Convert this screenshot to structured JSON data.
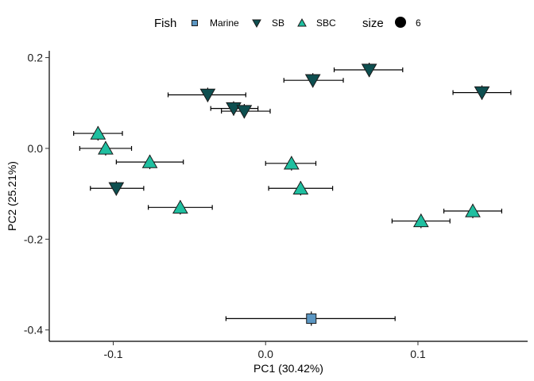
{
  "chart_data": {
    "type": "scatter",
    "title": "",
    "xlabel": "PC1 (30.42%)",
    "ylabel": "PC2 (25.21%)",
    "xlim": [
      -0.142,
      0.172
    ],
    "ylim": [
      -0.425,
      0.215
    ],
    "x_ticks": [
      -0.1,
      0.0,
      0.1
    ],
    "x_tick_labels": [
      "-0.1",
      "0.0",
      "0.1"
    ],
    "y_ticks": [
      0.2,
      0.0,
      -0.2,
      -0.4
    ],
    "y_tick_labels": [
      "0.2",
      "0.0",
      "-0.2",
      "-0.4"
    ],
    "grid": false,
    "legend": {
      "placement": "top",
      "title": "Fish",
      "size_title": "size",
      "size_value": "6",
      "entries": [
        {
          "label": "Marine",
          "shape": "square",
          "color": "#5b96c2"
        },
        {
          "label": "SB",
          "shape": "triangle-down",
          "color": "#0d4f50"
        },
        {
          "label": "SBC",
          "shape": "triangle-up",
          "color": "#1fbfa0"
        }
      ]
    },
    "series": [
      {
        "name": "Marine",
        "shape": "square",
        "color": "#5b96c2",
        "points": [
          {
            "x": 0.03,
            "y": -0.375,
            "xmin": -0.026,
            "xmax": 0.085
          }
        ]
      },
      {
        "name": "SB",
        "shape": "triangle-down",
        "color": "#0d4f50",
        "points": [
          {
            "x": 0.068,
            "y": 0.173,
            "xmin": 0.045,
            "xmax": 0.09
          },
          {
            "x": 0.031,
            "y": 0.15,
            "xmin": 0.012,
            "xmax": 0.051
          },
          {
            "x": 0.142,
            "y": 0.123,
            "xmin": 0.123,
            "xmax": 0.161
          },
          {
            "x": -0.038,
            "y": 0.118,
            "xmin": -0.064,
            "xmax": -0.013
          },
          {
            "x": -0.021,
            "y": 0.088,
            "xmin": -0.036,
            "xmax": -0.005
          },
          {
            "x": -0.014,
            "y": 0.082,
            "xmin": -0.029,
            "xmax": 0.003
          },
          {
            "x": -0.098,
            "y": -0.088,
            "xmin": -0.115,
            "xmax": -0.08
          }
        ]
      },
      {
        "name": "SBC",
        "shape": "triangle-up",
        "color": "#1fbfa0",
        "points": [
          {
            "x": -0.11,
            "y": 0.033,
            "xmin": -0.126,
            "xmax": -0.094
          },
          {
            "x": -0.105,
            "y": 0.0,
            "xmin": -0.122,
            "xmax": -0.088
          },
          {
            "x": -0.076,
            "y": -0.03,
            "xmin": -0.098,
            "xmax": -0.054
          },
          {
            "x": -0.056,
            "y": -0.13,
            "xmin": -0.077,
            "xmax": -0.035
          },
          {
            "x": 0.017,
            "y": -0.033,
            "xmin": 0.0,
            "xmax": 0.033
          },
          {
            "x": 0.023,
            "y": -0.088,
            "xmin": 0.002,
            "xmax": 0.044
          },
          {
            "x": 0.102,
            "y": -0.16,
            "xmin": 0.083,
            "xmax": 0.121
          },
          {
            "x": 0.136,
            "y": -0.138,
            "xmin": 0.117,
            "xmax": 0.155
          }
        ]
      }
    ]
  }
}
